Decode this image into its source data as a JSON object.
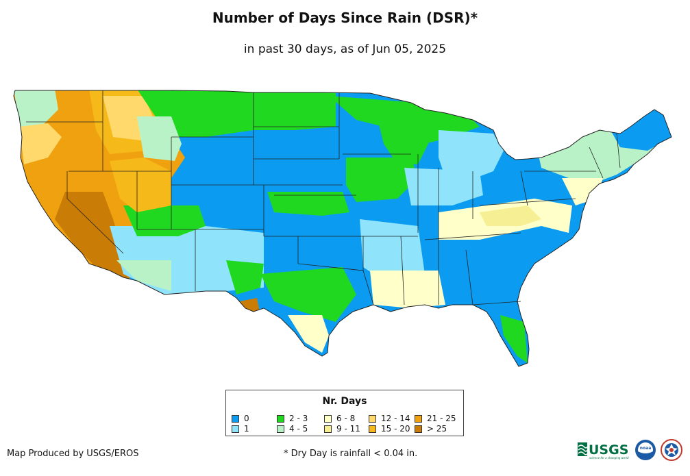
{
  "title": "Number of Days Since Rain (DSR)*",
  "subtitle": "in past 30 days, as of Jun 05, 2025",
  "legend": {
    "title": "Nr. Days",
    "items": [
      {
        "label": "0",
        "color": "#0b9bf0"
      },
      {
        "label": "1",
        "color": "#8fe4fb"
      },
      {
        "label": "2 - 3",
        "color": "#21d821"
      },
      {
        "label": "4 - 5",
        "color": "#b9f2c6"
      },
      {
        "label": "6 - 8",
        "color": "#ffffc9"
      },
      {
        "label": "9 - 11",
        "color": "#f7ef93"
      },
      {
        "label": "12 - 14",
        "color": "#ffd96b"
      },
      {
        "label": "15 - 20",
        "color": "#f6b91a"
      },
      {
        "label": "21 - 25",
        "color": "#f0a10f"
      },
      {
        "label": "> 25",
        "color": "#c97c06"
      }
    ]
  },
  "credit": "Map Produced by USGS/EROS",
  "footnote": "* Dry Day is rainfall < 0.04 in.",
  "logos": {
    "usgs": "USGS",
    "usgs_tagline": "science for a changing world",
    "noaa": "noaa"
  },
  "colors": {
    "water": "#ffffff",
    "border": "#222222"
  }
}
